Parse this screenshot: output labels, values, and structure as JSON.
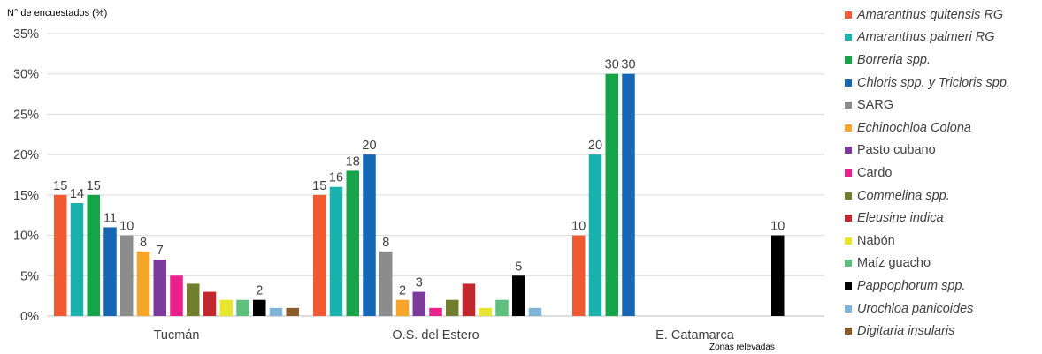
{
  "chart_data": {
    "type": "bar",
    "ylabel": "N° de encuestados (%)",
    "xlabel": "Zonas relevadas",
    "ylim": [
      0,
      35
    ],
    "ytick_labels": [
      "0%",
      "5%",
      "10%",
      "15%",
      "20%",
      "25%",
      "30%",
      "35%"
    ],
    "ytick_values": [
      0,
      5,
      10,
      15,
      20,
      25,
      30,
      35
    ],
    "grid": true,
    "legend_position": "right",
    "categories": [
      "Tucmán",
      "O.S. del Estero",
      "E. Catamarca"
    ],
    "series": [
      {
        "name": "Amaranthus quitensis RG",
        "italic": true,
        "color": "#ef5a33",
        "values": [
          15,
          15,
          10
        ],
        "labels": [
          "15",
          "15",
          "10"
        ]
      },
      {
        "name": "Amaranthus palmeri RG",
        "italic": true,
        "color": "#19b2ac",
        "values": [
          14,
          16,
          20
        ],
        "labels": [
          "14",
          "16",
          "20"
        ]
      },
      {
        "name": "Borreria spp.",
        "italic": true,
        "color": "#16a34a",
        "values": [
          15,
          18,
          30
        ],
        "labels": [
          "15",
          "18",
          "30"
        ]
      },
      {
        "name": "Chloris spp. y Tricloris spp.",
        "italic": true,
        "color": "#1566b5",
        "values": [
          11,
          20,
          30
        ],
        "labels": [
          "11",
          "20",
          "30"
        ]
      },
      {
        "name": "SARG",
        "italic": false,
        "color": "#8c8c8c",
        "values": [
          10,
          8,
          null
        ],
        "labels": [
          "10",
          "8",
          ""
        ]
      },
      {
        "name": "Echinochloa Colona",
        "italic": true,
        "color": "#f6a52a",
        "values": [
          8,
          2,
          null
        ],
        "labels": [
          "8",
          "2",
          ""
        ]
      },
      {
        "name": "Pasto cubano",
        "italic": false,
        "color": "#7c3a9d",
        "values": [
          7,
          3,
          null
        ],
        "labels": [
          "7",
          "3",
          ""
        ]
      },
      {
        "name": "Cardo",
        "italic": false,
        "color": "#ec1f8c",
        "values": [
          5,
          1,
          null
        ],
        "labels": [
          "",
          "",
          ""
        ]
      },
      {
        "name": "Commelina spp.",
        "italic": true,
        "color": "#6f7f2e",
        "values": [
          4,
          2,
          null
        ],
        "labels": [
          "",
          "",
          ""
        ]
      },
      {
        "name": "Eleusine indica",
        "italic": true,
        "color": "#c1272d",
        "values": [
          3,
          4,
          null
        ],
        "labels": [
          "",
          "",
          ""
        ]
      },
      {
        "name": "Nabón",
        "italic": false,
        "color": "#e6e62e",
        "values": [
          2,
          1,
          null
        ],
        "labels": [
          "",
          "",
          ""
        ]
      },
      {
        "name": "Maíz guacho",
        "italic": false,
        "color": "#5fbf7d",
        "values": [
          2,
          2,
          null
        ],
        "labels": [
          "",
          "",
          ""
        ]
      },
      {
        "name": "Pappophorum spp.",
        "italic": true,
        "color": "#000000",
        "values": [
          2,
          5,
          10
        ],
        "labels": [
          "2",
          "5",
          "10"
        ]
      },
      {
        "name": "Urochloa panicoides",
        "italic": true,
        "color": "#7fb4d8",
        "values": [
          1,
          1,
          null
        ],
        "labels": [
          "",
          "",
          ""
        ]
      },
      {
        "name": "Digitaria insularis",
        "italic": true,
        "color": "#8a5a2b",
        "values": [
          1,
          null,
          null
        ],
        "labels": [
          "",
          "",
          ""
        ]
      }
    ]
  }
}
